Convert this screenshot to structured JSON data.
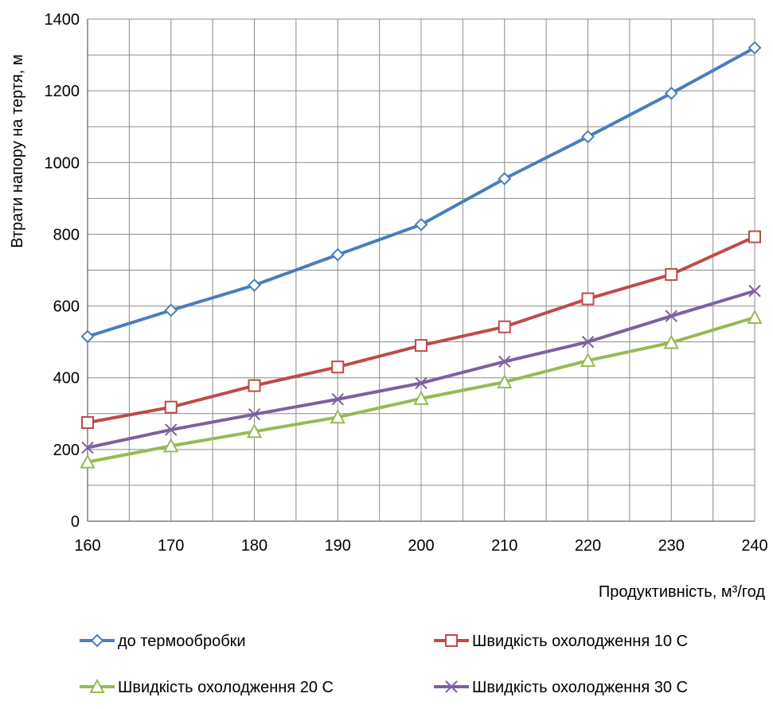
{
  "chart_data": {
    "type": "line",
    "title": "",
    "xlabel": "Продуктивність, м³/год",
    "ylabel": "Втрати напору на тертя, м",
    "x": [
      160,
      170,
      180,
      190,
      200,
      210,
      220,
      230,
      240
    ],
    "xlim": [
      160,
      240
    ],
    "ylim": [
      0,
      1400
    ],
    "yticks": [
      0,
      200,
      400,
      600,
      800,
      1000,
      1200,
      1400
    ],
    "grid": true,
    "legend_position": "bottom",
    "series": [
      {
        "name": "до термообробки",
        "color": "#4a7ebb",
        "marker": "diamond",
        "values": [
          515,
          588,
          658,
          743,
          827,
          955,
          1072,
          1193,
          1320
        ]
      },
      {
        "name": "Швидкість охолодження 10 С",
        "color": "#be4b48",
        "marker": "square",
        "values": [
          275,
          318,
          378,
          430,
          490,
          542,
          620,
          688,
          793
        ]
      },
      {
        "name": "Швидкість охолодження 20 С",
        "color": "#98b954",
        "marker": "triangle",
        "values": [
          165,
          210,
          250,
          290,
          342,
          388,
          448,
          498,
          568
        ]
      },
      {
        "name": "Швидкість охолодження 30 С",
        "color": "#7d60a0",
        "marker": "x",
        "values": [
          205,
          255,
          298,
          340,
          385,
          445,
          500,
          572,
          642
        ]
      }
    ]
  }
}
